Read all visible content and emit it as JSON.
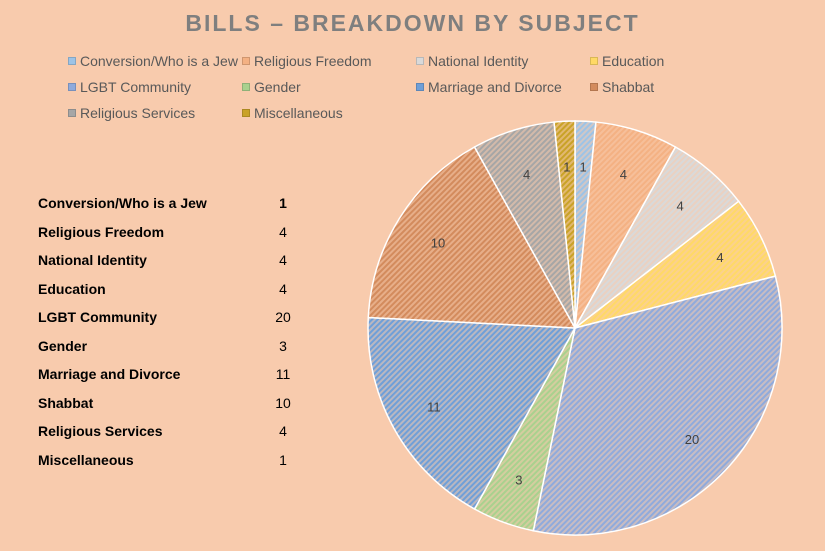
{
  "chart_data": {
    "type": "pie",
    "title": "BILLS – BREAKDOWN BY SUBJECT",
    "categories": [
      "Conversion/Who is a Jew",
      "Religious Freedom",
      "National Identity",
      "Education",
      "LGBT Community",
      "Gender",
      "Marriage and Divorce",
      "Shabbat",
      "Religious Services",
      "Miscellaneous"
    ],
    "values": [
      1,
      4,
      4,
      4,
      20,
      3,
      11,
      10,
      4,
      1
    ],
    "colors": [
      "#9dc3e6",
      "#f4b183",
      "#d9d9d9",
      "#ffd966",
      "#8faadc",
      "#a9d18e",
      "#6f9fd8",
      "#d38b5d",
      "#a6a6a6",
      "#c9a227"
    ],
    "legend_position": "top",
    "data_labels": true
  },
  "table": {
    "rows": [
      {
        "label": "Conversion/Who is a Jew",
        "value": "1"
      },
      {
        "label": "Religious Freedom",
        "value": "4"
      },
      {
        "label": "National Identity",
        "value": "4"
      },
      {
        "label": "Education",
        "value": "4"
      },
      {
        "label": "LGBT Community",
        "value": "20"
      },
      {
        "label": "Gender",
        "value": "3"
      },
      {
        "label": "Marriage and Divorce",
        "value": "11"
      },
      {
        "label": "Shabbat",
        "value": "10"
      },
      {
        "label": "Religious Services",
        "value": "4"
      },
      {
        "label": "Miscellaneous",
        "value": "1"
      }
    ]
  }
}
